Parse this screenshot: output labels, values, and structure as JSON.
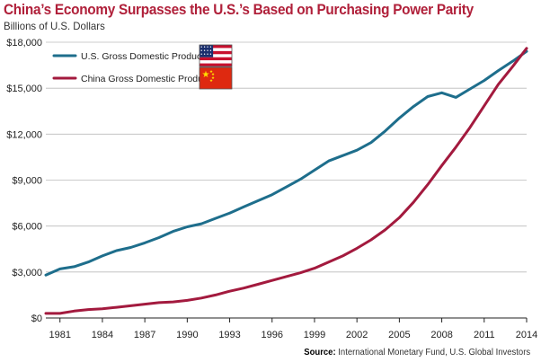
{
  "title": "China’s Economy Surpasses the U.S.’s Based on Purchasing Power Parity",
  "subtitle": "Billions of U.S. Dollars",
  "source_label": "Source:",
  "source_text": " International Monetary Fund, U.S. Global Investors",
  "colors": {
    "us": "#1e6e8c",
    "china": "#a31a3e",
    "axis": "#222222",
    "grid": "#bbbbbb"
  },
  "chart_data": {
    "type": "line",
    "title": "China’s Economy Surpasses the U.S.’s Based on Purchasing Power Parity",
    "subtitle": "Billions of U.S. Dollars",
    "xlim": [
      1980,
      2014
    ],
    "ylim": [
      0,
      18000
    ],
    "ytick_labels": [
      "$0",
      "$3,000",
      "$6,000",
      "$9,000",
      "$12,000",
      "$15,000",
      "$18,000"
    ],
    "ytick_values": [
      0,
      3000,
      6000,
      9000,
      12000,
      15000,
      18000
    ],
    "xtick_labels": [
      "1981",
      "1984",
      "1987",
      "1990",
      "1993",
      "1996",
      "1999",
      "2002",
      "2005",
      "2008",
      "2011",
      "2014"
    ],
    "xtick_values": [
      1981,
      1984,
      1987,
      1990,
      1993,
      1996,
      1999,
      2002,
      2005,
      2008,
      2011,
      2014
    ],
    "grid": "horizontal",
    "legend_position": "top-left",
    "series": [
      {
        "name": "U.S. Gross Domestic Product",
        "icon": "us-flag-icon",
        "x": [
          1980,
          1981,
          1982,
          1983,
          1984,
          1985,
          1986,
          1987,
          1988,
          1989,
          1990,
          1991,
          1992,
          1993,
          1994,
          1995,
          1996,
          1997,
          1998,
          1999,
          2000,
          2001,
          2002,
          2003,
          2004,
          2005,
          2006,
          2007,
          2008,
          2009,
          2010,
          2011,
          2012,
          2013,
          2014
        ],
        "values": [
          2800,
          3200,
          3350,
          3650,
          4050,
          4400,
          4600,
          4900,
          5250,
          5650,
          5950,
          6150,
          6500,
          6850,
          7250,
          7650,
          8050,
          8550,
          9050,
          9650,
          10250,
          10600,
          10950,
          11450,
          12200,
          13050,
          13800,
          14450,
          14700,
          14400,
          14950,
          15500,
          16150,
          16750,
          17400
        ]
      },
      {
        "name": "China Gross Domestic Product",
        "icon": "china-flag-icon",
        "x": [
          1980,
          1981,
          1982,
          1983,
          1984,
          1985,
          1986,
          1987,
          1988,
          1989,
          1990,
          1991,
          1992,
          1993,
          1994,
          1995,
          1996,
          1997,
          1998,
          1999,
          2000,
          2001,
          2002,
          2003,
          2004,
          2005,
          2006,
          2007,
          2008,
          2009,
          2010,
          2011,
          2012,
          2013,
          2014
        ],
        "values": [
          300,
          300,
          450,
          550,
          600,
          700,
          800,
          900,
          1000,
          1050,
          1150,
          1300,
          1500,
          1750,
          1950,
          2200,
          2450,
          2700,
          2950,
          3250,
          3650,
          4050,
          4550,
          5100,
          5750,
          6550,
          7550,
          8700,
          9950,
          11150,
          12450,
          13850,
          15250,
          16400,
          17600
        ]
      }
    ]
  }
}
